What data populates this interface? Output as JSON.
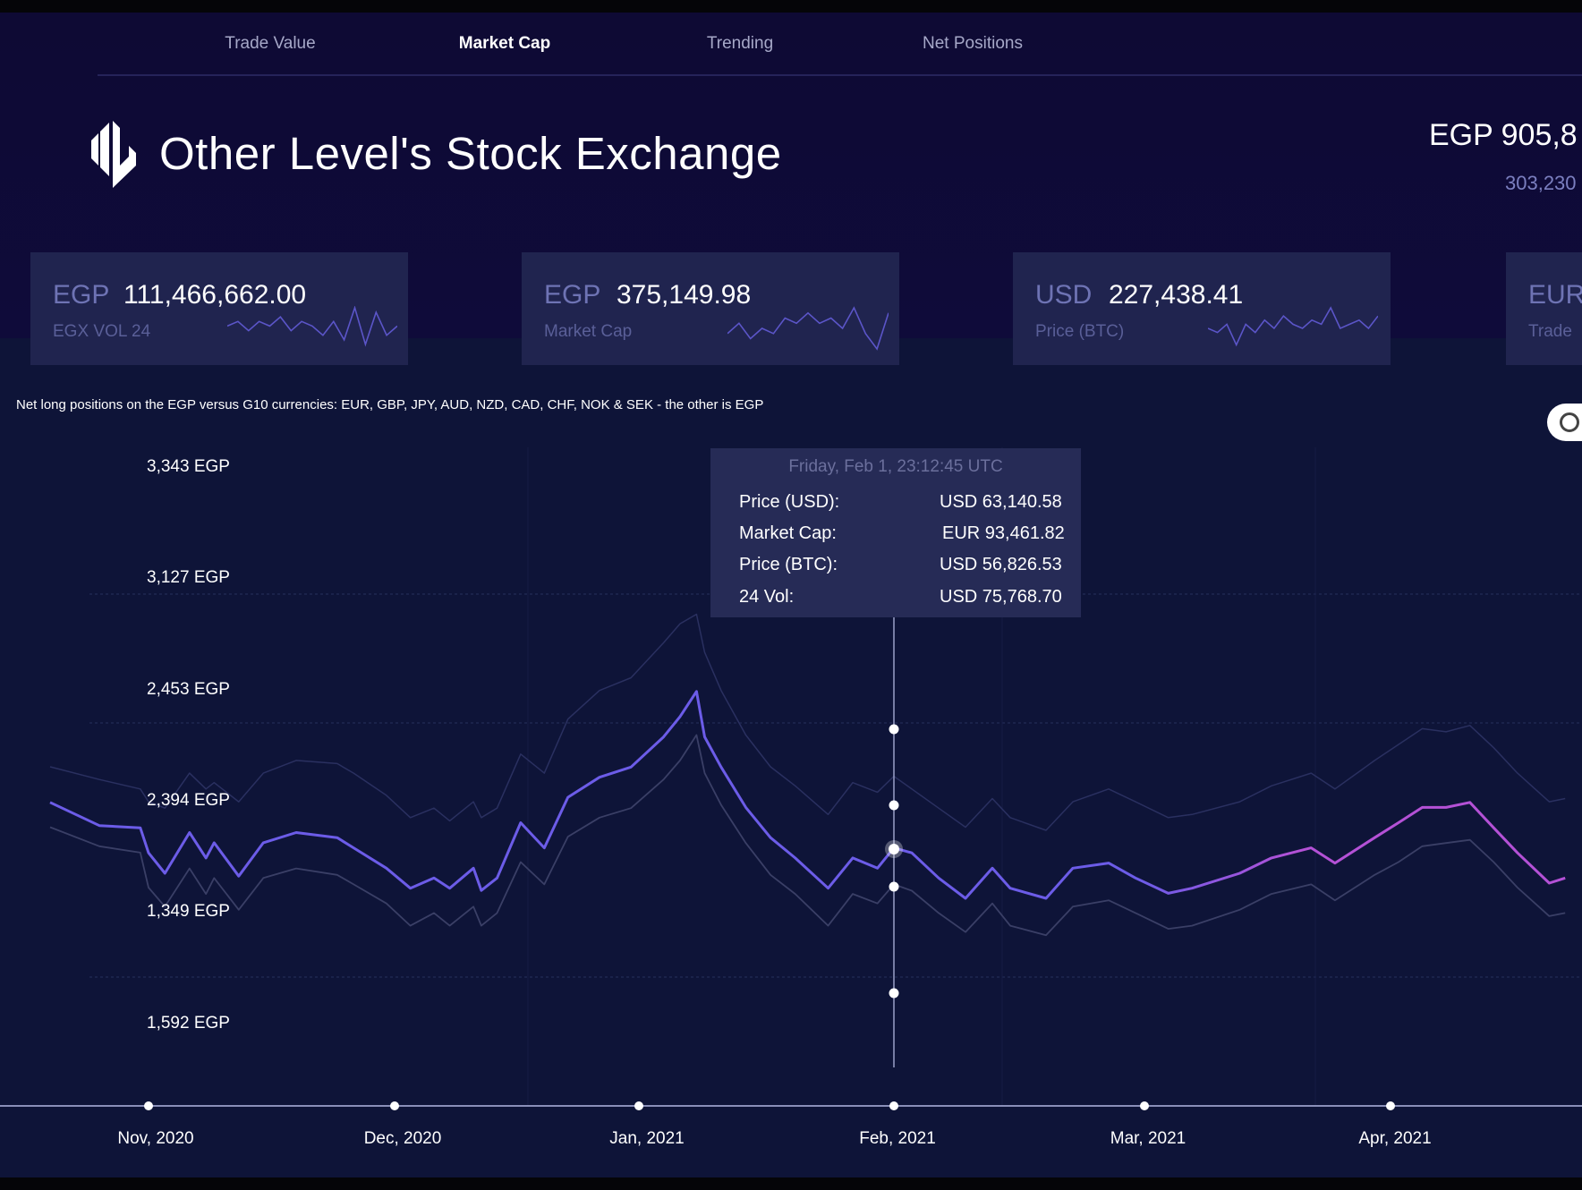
{
  "nav": {
    "tabs": [
      {
        "label": "Trade Value",
        "active": false
      },
      {
        "label": "Market Cap",
        "active": true
      },
      {
        "label": "Trending",
        "active": false
      },
      {
        "label": "Net Positions",
        "active": false
      }
    ]
  },
  "header": {
    "title": "Other Level's Stock Exchange",
    "logo_text": "OL",
    "headline_value": "EGP 905,8",
    "headline_sub": "303,230"
  },
  "cards": [
    {
      "currency": "EGP",
      "value": "111,466,662.00",
      "label": "EGX VOL 24",
      "spark": [
        5,
        6,
        4,
        6,
        5,
        7,
        4,
        6,
        5,
        3,
        6,
        2,
        9,
        1,
        8,
        3,
        5
      ]
    },
    {
      "currency": "EGP",
      "value": "375,149.98",
      "label": "Market Cap",
      "spark": [
        3,
        5,
        2,
        4,
        3,
        6,
        5,
        7,
        5,
        6,
        4,
        8,
        3,
        0,
        7
      ]
    },
    {
      "currency": "USD",
      "value": "227,438.41",
      "label": "Price (BTC)",
      "spark": [
        5,
        4,
        6,
        1,
        6,
        4,
        7,
        5,
        8,
        6,
        5,
        7,
        6,
        10,
        5,
        6,
        7,
        5,
        8
      ]
    },
    {
      "currency": "EUR",
      "value": "",
      "label": "Trade",
      "spark": []
    }
  ],
  "chart_subtitle": "Net long positions on the EGP versus G10 currencies: EUR, GBP, JPY, AUD, NZD, CAD, CHF, NOK & SEK - the other is EGP",
  "colors": {
    "primary_line": "#6c5ce8",
    "secondary_line": "#b451d6",
    "band_line": "#3a3f66",
    "background": "#0e1438",
    "card": "#20244f"
  },
  "tooltip": {
    "title": "Friday, Feb 1, 23:12:45 UTC",
    "rows": [
      {
        "label": "Price (USD):",
        "value": "USD 63,140.58"
      },
      {
        "label": "Market Cap:",
        "value": "EUR 93,461.82"
      },
      {
        "label": "Price (BTC):",
        "value": "USD 56,826.53"
      },
      {
        "label": "24 Vol:",
        "value": "USD 75,768.70"
      }
    ]
  },
  "chart_data": {
    "type": "line",
    "title": "",
    "xlabel": "",
    "ylabel": "",
    "y_tick_labels": [
      "3,343 EGP",
      "3,127 EGP",
      "2,453 EGP",
      "2,394 EGP",
      "1,349 EGP",
      "1,592 EGP"
    ],
    "x_tick_labels": [
      "Nov, 2020",
      "Dec, 2020",
      "Jan, 2021",
      "Feb, 2021",
      "Mar, 2021",
      "Apr, 2021"
    ],
    "x_ticks": [
      "2020-11-01",
      "2020-12-01",
      "2021-01-01",
      "2021-02-01",
      "2021-03-01",
      "2021-04-01"
    ],
    "ylim": [
      1592,
      3343
    ],
    "grid": true,
    "crosshair_date": "2021-02-01",
    "x": [
      "2020-10-20",
      "2020-10-26",
      "2020-10-31",
      "2020-11-01",
      "2020-11-03",
      "2020-11-06",
      "2020-11-08",
      "2020-11-09",
      "2020-11-12",
      "2020-11-15",
      "2020-11-19",
      "2020-11-24",
      "2020-11-26",
      "2020-11-30",
      "2020-12-03",
      "2020-12-06",
      "2020-12-08",
      "2020-12-11",
      "2020-12-12",
      "2020-12-14",
      "2020-12-17",
      "2020-12-20",
      "2020-12-23",
      "2020-12-27",
      "2020-12-31",
      "2021-01-04",
      "2021-01-06",
      "2021-01-08",
      "2021-01-09",
      "2021-01-11",
      "2021-01-14",
      "2021-01-17",
      "2021-01-20",
      "2021-01-24",
      "2021-01-27",
      "2021-01-30",
      "2021-02-01",
      "2021-02-03",
      "2021-02-06",
      "2021-02-09",
      "2021-02-12",
      "2021-02-14",
      "2021-02-18",
      "2021-02-21",
      "2021-02-25",
      "2021-02-28",
      "2021-03-04",
      "2021-03-07",
      "2021-03-13",
      "2021-03-17",
      "2021-03-22",
      "2021-03-25",
      "2021-03-30",
      "2021-04-02",
      "2021-04-05",
      "2021-04-08",
      "2021-04-11",
      "2021-04-14",
      "2021-04-17",
      "2021-04-21",
      "2021-04-23"
    ],
    "series": [
      {
        "role": "main",
        "values": [
          2288,
          2215,
          2208,
          2129,
          2065,
          2193,
          2113,
          2161,
          2056,
          2161,
          2193,
          2177,
          2145,
          2081,
          2018,
          2050,
          2018,
          2081,
          2011,
          2050,
          2224,
          2145,
          2304,
          2367,
          2399,
          2494,
          2558,
          2637,
          2494,
          2399,
          2272,
          2177,
          2113,
          2018,
          2113,
          2081,
          2145,
          2129,
          2050,
          1986,
          2081,
          2018,
          1986,
          2081,
          2097,
          2050,
          2002,
          2018,
          2065,
          2113,
          2145,
          2097,
          2177,
          2224,
          2272,
          2272,
          2288,
          2208,
          2129,
          2034,
          2050
        ]
      },
      {
        "role": "lower-band",
        "values": [
          2210,
          2150,
          2130,
          2020,
          1960,
          2080,
          2000,
          2050,
          1950,
          2050,
          2080,
          2060,
          2030,
          1970,
          1900,
          1940,
          1900,
          1960,
          1900,
          1940,
          2100,
          2030,
          2180,
          2240,
          2270,
          2360,
          2420,
          2500,
          2380,
          2280,
          2160,
          2060,
          2000,
          1900,
          2000,
          1970,
          2030,
          2010,
          1940,
          1880,
          1970,
          1900,
          1870,
          1960,
          1980,
          1940,
          1890,
          1900,
          1950,
          2000,
          2030,
          1980,
          2060,
          2100,
          2150,
          2160,
          2170,
          2100,
          2020,
          1930,
          1940
        ]
      },
      {
        "role": "upper-band",
        "values": [
          2400,
          2360,
          2330,
          2290,
          2270,
          2380,
          2330,
          2350,
          2290,
          2380,
          2420,
          2410,
          2380,
          2310,
          2240,
          2270,
          2230,
          2290,
          2240,
          2270,
          2440,
          2380,
          2550,
          2640,
          2680,
          2790,
          2850,
          2880,
          2760,
          2640,
          2500,
          2400,
          2340,
          2250,
          2350,
          2320,
          2370,
          2330,
          2270,
          2210,
          2300,
          2240,
          2200,
          2290,
          2330,
          2290,
          2240,
          2250,
          2290,
          2340,
          2380,
          2330,
          2420,
          2470,
          2520,
          2510,
          2530,
          2460,
          2380,
          2290,
          2300
        ]
      }
    ]
  }
}
